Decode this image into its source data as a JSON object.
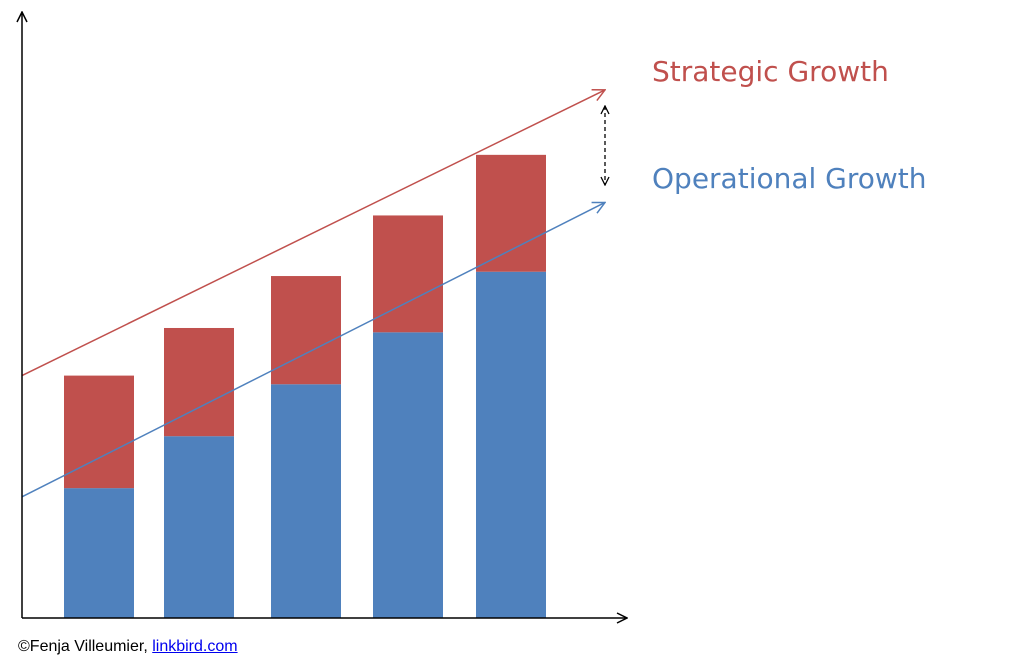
{
  "chart_data": {
    "type": "bar",
    "stacked": true,
    "categories": [
      "",
      "",
      "",
      "",
      ""
    ],
    "series": [
      {
        "name": "Operational Growth",
        "color": "#4f81bd",
        "values": [
          30,
          42,
          54,
          66,
          80
        ]
      },
      {
        "name": "Strategic Growth",
        "color": "#c0504d",
        "values": [
          26,
          25,
          25,
          27,
          27
        ]
      }
    ],
    "trend_lines": [
      {
        "series": "Strategic Growth",
        "start": 56,
        "end": 122
      },
      {
        "series": "Operational Growth",
        "start": 28,
        "end": 96
      }
    ],
    "gap_indicator": {
      "style": "dashed",
      "direction": "both"
    },
    "title": "",
    "xlabel": "",
    "ylabel": "",
    "ylim": [
      0,
      140
    ],
    "axis_ticks": false,
    "grid": false,
    "legend_position": "right"
  },
  "legend": {
    "strategic_label": "Strategic Growth",
    "operational_label": "Operational Growth",
    "strategic_color": "#c0504d",
    "operational_color": "#4f81bd"
  },
  "credit": {
    "prefix": "©Fenja Villeumier, ",
    "link_text": "linkbird.com"
  }
}
